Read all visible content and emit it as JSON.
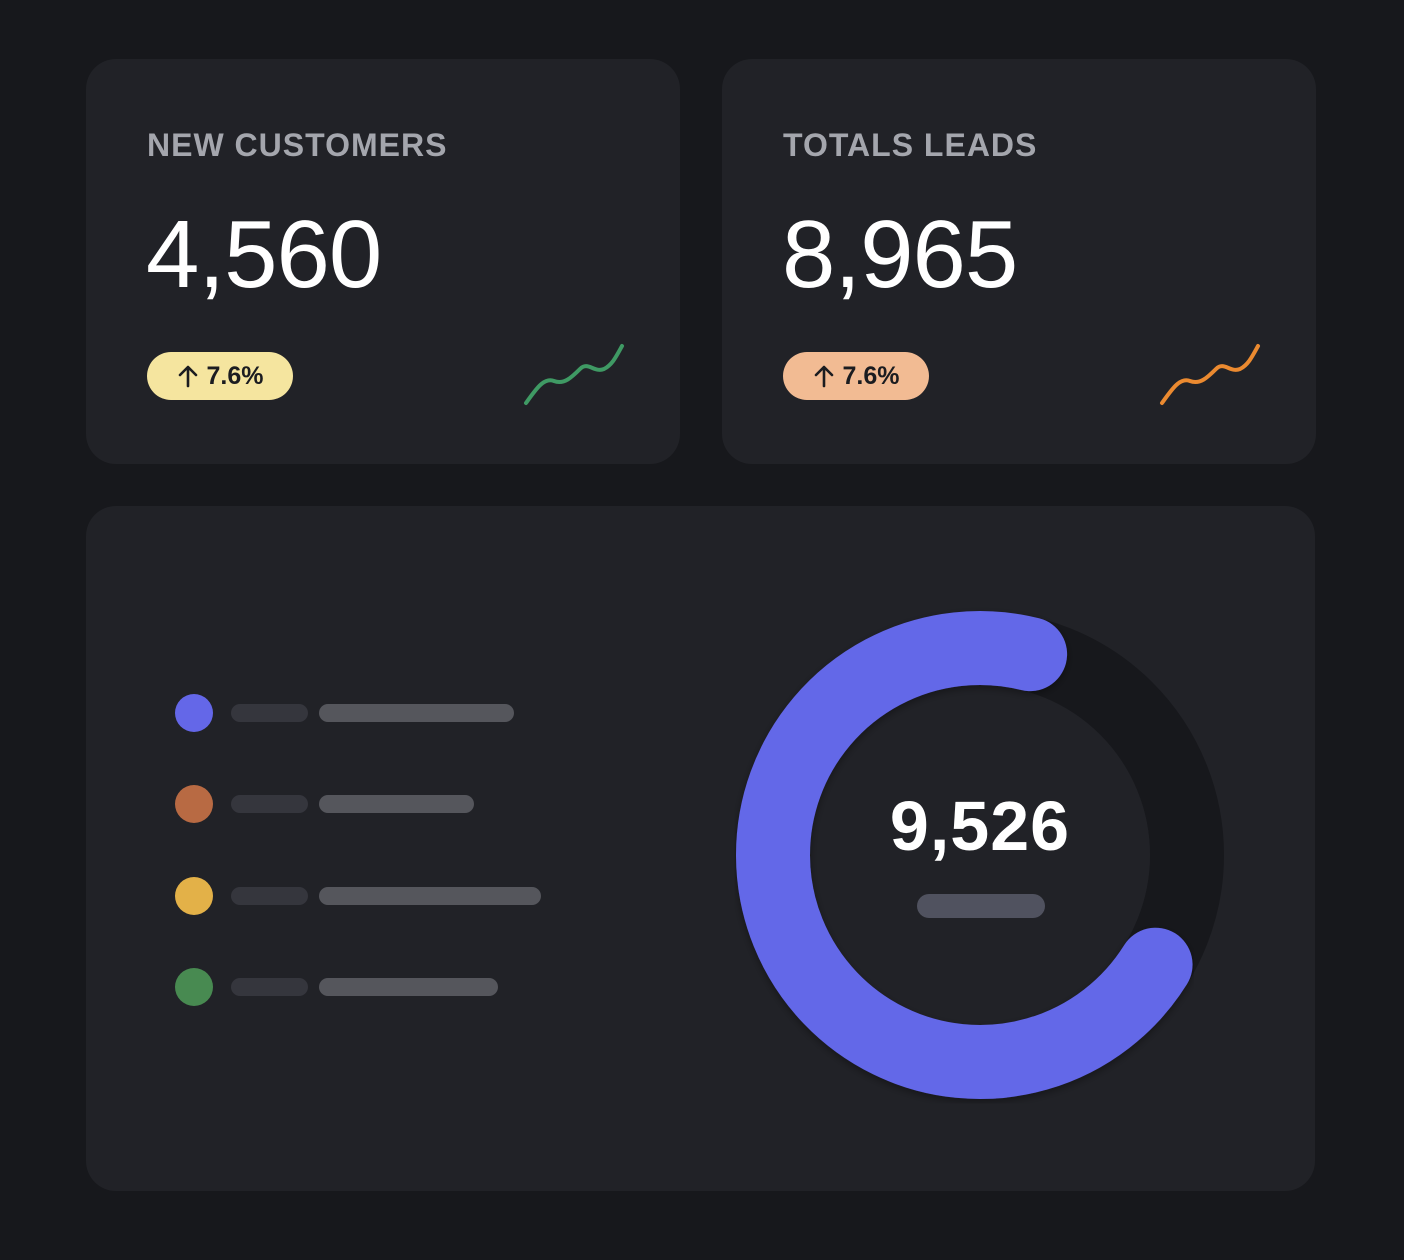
{
  "cards": {
    "customers": {
      "title": "NEW CUSTOMERS",
      "value": "4,560",
      "change": "7.6%",
      "badge_color": "#f5e59f",
      "trend_color": "#3f9a64"
    },
    "leads": {
      "title": "TOTALS LEADS",
      "value": "8,965",
      "change": "7.6%",
      "badge_color": "#f2bb93",
      "trend_color": "#eb8a30"
    }
  },
  "donut": {
    "total": "9,526",
    "fill_fraction": 0.7,
    "arc_color": "#6467e8",
    "track_color": "#17181c",
    "legend": [
      {
        "color": "#6467e8"
      },
      {
        "color": "#b86a43"
      },
      {
        "color": "#e3b148"
      },
      {
        "color": "#488a51"
      }
    ]
  }
}
